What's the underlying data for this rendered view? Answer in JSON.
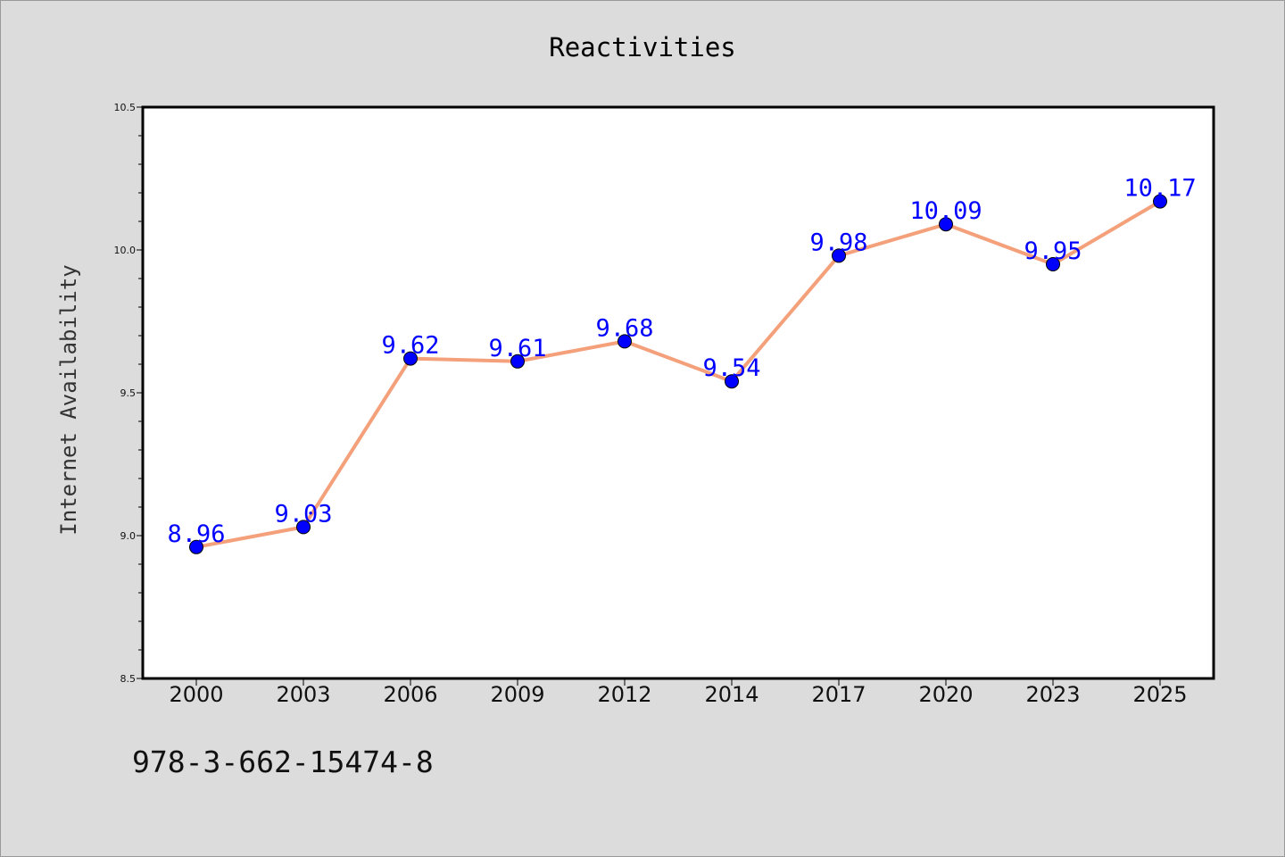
{
  "chart_data": {
    "type": "line",
    "title": "Reactivities",
    "xlabel": "",
    "ylabel": "Internet Availability",
    "categories": [
      "2000",
      "2003",
      "2006",
      "2009",
      "2012",
      "2014",
      "2017",
      "2020",
      "2023",
      "2025"
    ],
    "series": [
      {
        "values": [
          8.96,
          9.03,
          9.62,
          9.61,
          9.68,
          9.54,
          9.98,
          10.09,
          9.95,
          10.17
        ],
        "data_labels": [
          "8.96",
          "9.03",
          "9.62",
          "9.61",
          "9.68",
          "9.54",
          "9.98",
          "10.09",
          "9.95",
          "10.17"
        ],
        "line_color": "#f4a07a",
        "marker_color": "#0000ff"
      }
    ],
    "ylim": [
      8.5,
      10.5
    ],
    "yticks": [
      "8.5",
      "9.0",
      "9.5",
      "10.0",
      "10.5"
    ],
    "grid": false,
    "legend": "none"
  },
  "footnote": "978-3-662-15474-8",
  "colors": {
    "background": "#dcdcdc",
    "plot_background": "#ffffff",
    "line": "#f4a07a",
    "marker": "#0000ff",
    "data_label": "#0000ff"
  }
}
